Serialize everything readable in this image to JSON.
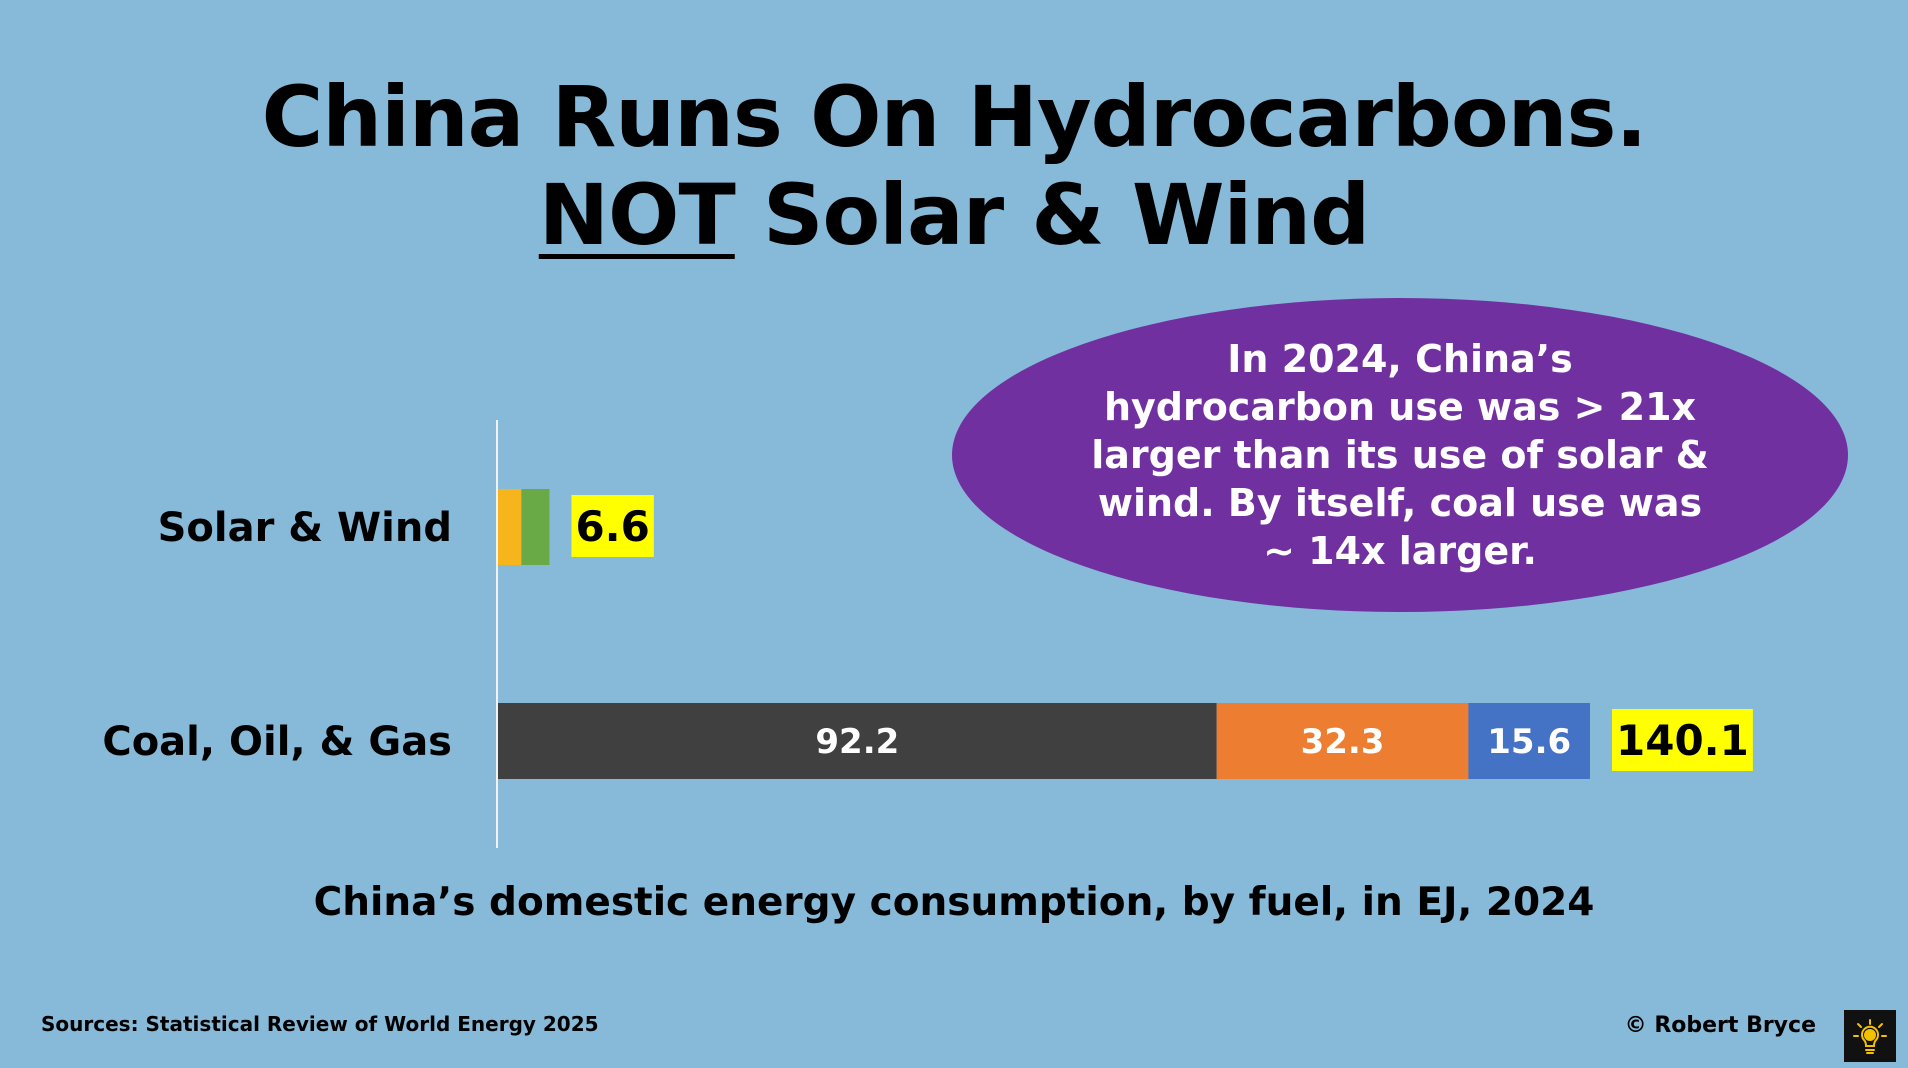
{
  "title": {
    "line1": "China Runs On Hydrocarbons.",
    "line2_underlined": "NOT",
    "line2_rest": " Solar & Wind"
  },
  "callout": "In 2024, China’s hydrocarbon use was > 21x larger than its use of solar & wind. By itself, coal use was ~ 14x larger.",
  "chart_data": {
    "type": "bar",
    "orientation": "horizontal",
    "stacked": true,
    "title": "China’s domestic energy consumption, by fuel, in EJ, 2024",
    "categories": [
      "Solar & Wind",
      "Coal, Oil, & Gas"
    ],
    "series": [
      {
        "name": "Solar",
        "color": "#f7b51c",
        "values": [
          3.0,
          null
        ]
      },
      {
        "name": "Wind",
        "color": "#6aaa46",
        "values": [
          3.6,
          null
        ]
      },
      {
        "name": "Coal",
        "color": "#404040",
        "values": [
          null,
          92.2
        ],
        "label": "92.2"
      },
      {
        "name": "Oil",
        "color": "#ed7d31",
        "values": [
          null,
          32.3
        ],
        "label": "32.3"
      },
      {
        "name": "Gas",
        "color": "#4472c4",
        "values": [
          null,
          15.6
        ],
        "label": "15.6"
      }
    ],
    "totals": [
      "6.6",
      "140.1"
    ],
    "xlim": [
      0,
      140.1
    ],
    "grid": false
  },
  "footer": {
    "sources": "Sources: Statistical Review of World Energy 2025",
    "copyright": "© Robert Bryce"
  },
  "colors": {
    "background": "#87b9d8",
    "callout": "#7030a0",
    "total_highlight": "#ffff00"
  }
}
